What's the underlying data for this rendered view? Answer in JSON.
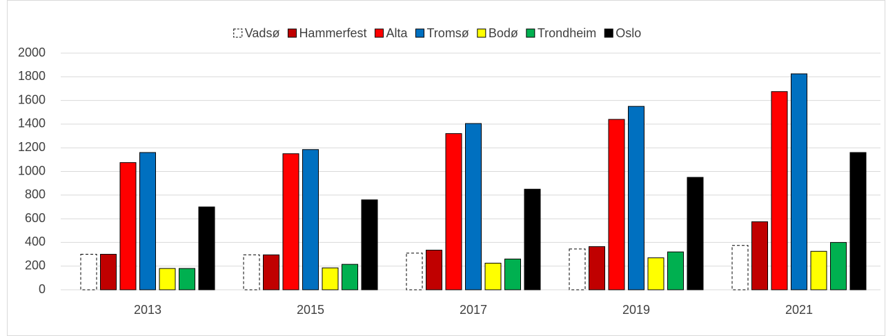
{
  "chart_data": {
    "type": "bar",
    "categories": [
      "2013",
      "2015",
      "2017",
      "2019",
      "2021"
    ],
    "series": [
      {
        "name": "Vadsø",
        "color": "#ffffff",
        "values": [
          300,
          295,
          310,
          345,
          375
        ]
      },
      {
        "name": "Hammerfest",
        "color": "#c00000",
        "values": [
          300,
          295,
          335,
          365,
          575
        ]
      },
      {
        "name": "Alta",
        "color": "#ff0000",
        "values": [
          1075,
          1150,
          1320,
          1440,
          1675
        ]
      },
      {
        "name": "Tromsø",
        "color": "#0070c0",
        "values": [
          1160,
          1185,
          1405,
          1550,
          1825
        ]
      },
      {
        "name": "Bodø",
        "color": "#ffff00",
        "values": [
          180,
          185,
          225,
          270,
          325
        ]
      },
      {
        "name": "Trondheim",
        "color": "#00b050",
        "values": [
          180,
          215,
          260,
          320,
          400
        ]
      },
      {
        "name": "Oslo",
        "color": "#000000",
        "values": [
          700,
          760,
          850,
          950,
          1160
        ]
      }
    ],
    "ylim": [
      0,
      2000
    ],
    "yticks": [
      0,
      200,
      400,
      600,
      800,
      1000,
      1200,
      1400,
      1600,
      1800,
      2000
    ],
    "grid": true,
    "legend": "top"
  }
}
